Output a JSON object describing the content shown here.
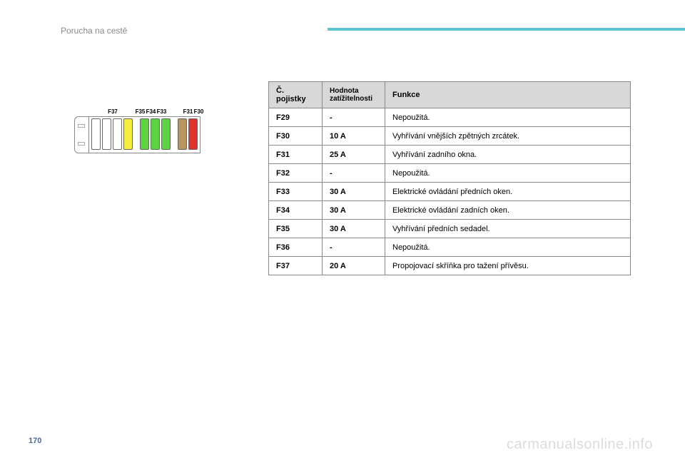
{
  "header": {
    "title": "Porucha na cestě",
    "accent_color": "#5bc4d0"
  },
  "diagram": {
    "labels": [
      "F37",
      "F35",
      "F34",
      "F33",
      "F31",
      "F30"
    ],
    "fuses": [
      {
        "color": "#ffffff",
        "label": ""
      },
      {
        "color": "#ffffff",
        "label": ""
      },
      {
        "color": "#ffffff",
        "label": ""
      },
      {
        "color": "#f5ec3d",
        "label": "F37"
      },
      {
        "gap": true
      },
      {
        "color": "#5bd43f",
        "label": "F35"
      },
      {
        "color": "#5bd43f",
        "label": "F34"
      },
      {
        "color": "#5bd43f",
        "label": "F33"
      },
      {
        "gap": true
      },
      {
        "color": "#b89560",
        "label": "F31"
      },
      {
        "color": "#e03030",
        "label": "F30"
      }
    ]
  },
  "table": {
    "headers": {
      "fuse": "Č. pojistky",
      "rating": "Hodnota zatížitelnosti",
      "function": "Funkce"
    },
    "rows": [
      {
        "fuse": "F29",
        "rating": "-",
        "function": "Nepoužitá."
      },
      {
        "fuse": "F30",
        "rating": "10 A",
        "function": "Vyhřívání vnějších zpětných zrcátek."
      },
      {
        "fuse": "F31",
        "rating": "25 A",
        "function": "Vyhřívání zadního okna."
      },
      {
        "fuse": "F32",
        "rating": "-",
        "function": "Nepoužitá."
      },
      {
        "fuse": "F33",
        "rating": "30 A",
        "function": "Elektrické ovládání předních oken."
      },
      {
        "fuse": "F34",
        "rating": "30 A",
        "function": "Elektrické ovládání zadních oken."
      },
      {
        "fuse": "F35",
        "rating": "30 A",
        "function": "Vyhřívání předních sedadel."
      },
      {
        "fuse": "F36",
        "rating": "-",
        "function": "Nepoužitá."
      },
      {
        "fuse": "F37",
        "rating": "20 A",
        "function": "Propojovací skříňka pro tažení přívěsu."
      }
    ]
  },
  "page_number": "170",
  "watermark": "carmanualsonline.info"
}
